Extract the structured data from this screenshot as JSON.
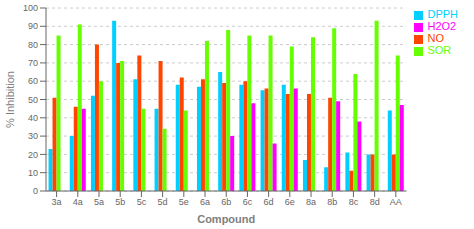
{
  "chart_data": {
    "type": "bar",
    "xlabel": "Compound",
    "ylabel": "% Inhibition",
    "categories": [
      "3a",
      "4a",
      "5a",
      "5b",
      "5c",
      "5d",
      "5e",
      "6a",
      "6b",
      "6c",
      "6d",
      "6e",
      "8a",
      "8b",
      "8c",
      "8d",
      "AA"
    ],
    "series": [
      {
        "name": "DPPH",
        "color": "#00CFFF",
        "values": [
          23,
          30,
          52,
          93,
          61,
          45,
          58,
          57,
          65,
          58,
          55,
          58,
          17,
          13,
          21,
          20,
          44
        ]
      },
      {
        "name": "NO",
        "color": "#FF4500",
        "values": [
          51,
          46,
          80,
          70,
          74,
          71,
          62,
          61,
          59,
          60,
          56,
          53,
          53,
          51,
          11,
          20,
          20
        ]
      },
      {
        "name": "SOR",
        "color": "#66FF00",
        "values": [
          85,
          91,
          60,
          71,
          45,
          34,
          44,
          82,
          88,
          85,
          85,
          79,
          84,
          89,
          64,
          93,
          74
        ]
      },
      {
        "name": "H2O2",
        "color": "#FF00FF",
        "values": [
          0,
          45,
          0,
          0,
          0,
          0,
          0,
          0,
          30,
          48,
          26,
          56,
          0,
          49,
          38,
          0,
          47
        ]
      }
    ],
    "ylim": [
      0,
      100
    ],
    "yticks": [
      0,
      10,
      20,
      30,
      40,
      50,
      60,
      70,
      80,
      90,
      100
    ],
    "grid": true,
    "legend": "right"
  }
}
